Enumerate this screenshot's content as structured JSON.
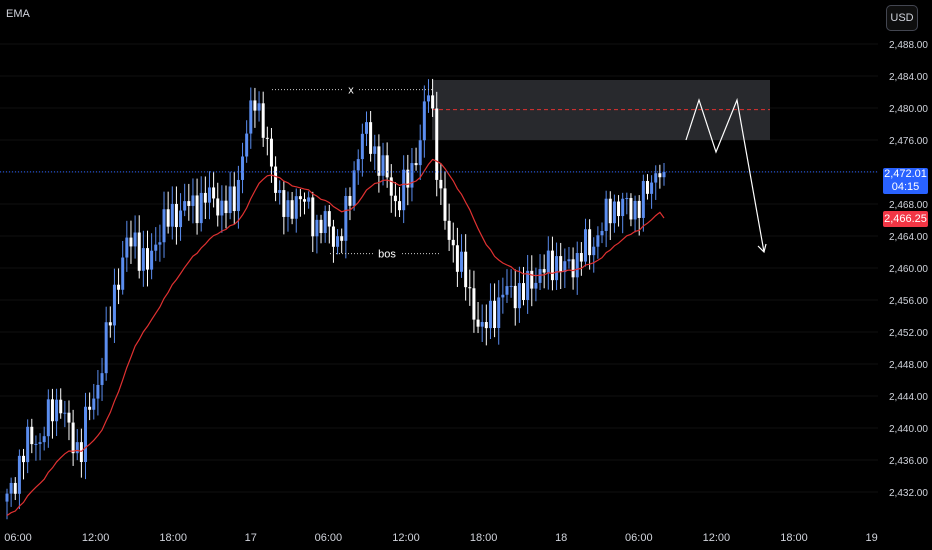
{
  "indicator_label": "EMA",
  "currency_button": "USD",
  "last_price": {
    "price": "2,472.01",
    "countdown": "04:15",
    "color": "#2962ff"
  },
  "ema_price": {
    "price": "2,466.25",
    "color": "#f23645"
  },
  "colors": {
    "up": "#5b8def",
    "down": "#ffffff",
    "ema": "#e03131",
    "last_line": "#2962ff",
    "zone": "#2a2b2f"
  },
  "annotations": {
    "top_label": "x",
    "bottom_label": "bos"
  },
  "chart_data": {
    "type": "candlestick",
    "y_ticks": [
      2432,
      2436,
      2440,
      2444,
      2448,
      2452,
      2456,
      2460,
      2464,
      2468,
      2472,
      2476,
      2480,
      2484,
      2488
    ],
    "y_tick_labels": [
      "2,432.00",
      "2,436.00",
      "2,440.00",
      "2,444.00",
      "2,448.00",
      "2,452.00",
      "2,456.00",
      "2,460.00",
      "2,464.00",
      "2,468.00",
      "2,472.00",
      "2,476.00",
      "2,480.00",
      "2,484.00",
      "2,488.00"
    ],
    "ylim": [
      2429.5,
      2490.5
    ],
    "x_labels": [
      "06:00",
      "12:00",
      "18:00",
      "17",
      "06:00",
      "12:00",
      "18:00",
      "18",
      "06:00",
      "12:00",
      "18:00",
      "19"
    ],
    "last_price": 2472.01,
    "swing_high": 2482.3,
    "bos_level": 2461.8,
    "supply_zone": {
      "low": 2476.0,
      "high": 2483.5,
      "mid": 2479.8
    },
    "projection": [
      2476.0,
      2481.0,
      2474.5,
      2481.0,
      2462.0
    ],
    "close_path": [
      2431,
      2433,
      2436,
      2438,
      2439,
      2438,
      2441,
      2443,
      2443,
      2440,
      2438,
      2437,
      2442,
      2444,
      2447,
      2452,
      2457,
      2460,
      2463,
      2464,
      2461,
      2460,
      2463,
      2465,
      2466,
      2467,
      2467,
      2468,
      2468,
      2468,
      2469,
      2469,
      2467,
      2468,
      2469,
      2473,
      2478,
      2482,
      2478,
      2474,
      2471,
      2468,
      2466,
      2469,
      2469,
      2467,
      2465,
      2466,
      2465,
      2463,
      2465,
      2468,
      2473,
      2477,
      2476,
      2474,
      2473,
      2470,
      2468,
      2470,
      2471,
      2474,
      2478,
      2483,
      2474,
      2467,
      2463,
      2462,
      2460,
      2456,
      2454,
      2452,
      2454,
      2455,
      2457,
      2457,
      2457,
      2457,
      2458,
      2459,
      2460,
      2460,
      2461,
      2460,
      2460,
      2461,
      2463,
      2462,
      2464,
      2466,
      2467,
      2468,
      2468,
      2467,
      2468,
      2469,
      2470,
      2473,
      2472
    ]
  }
}
